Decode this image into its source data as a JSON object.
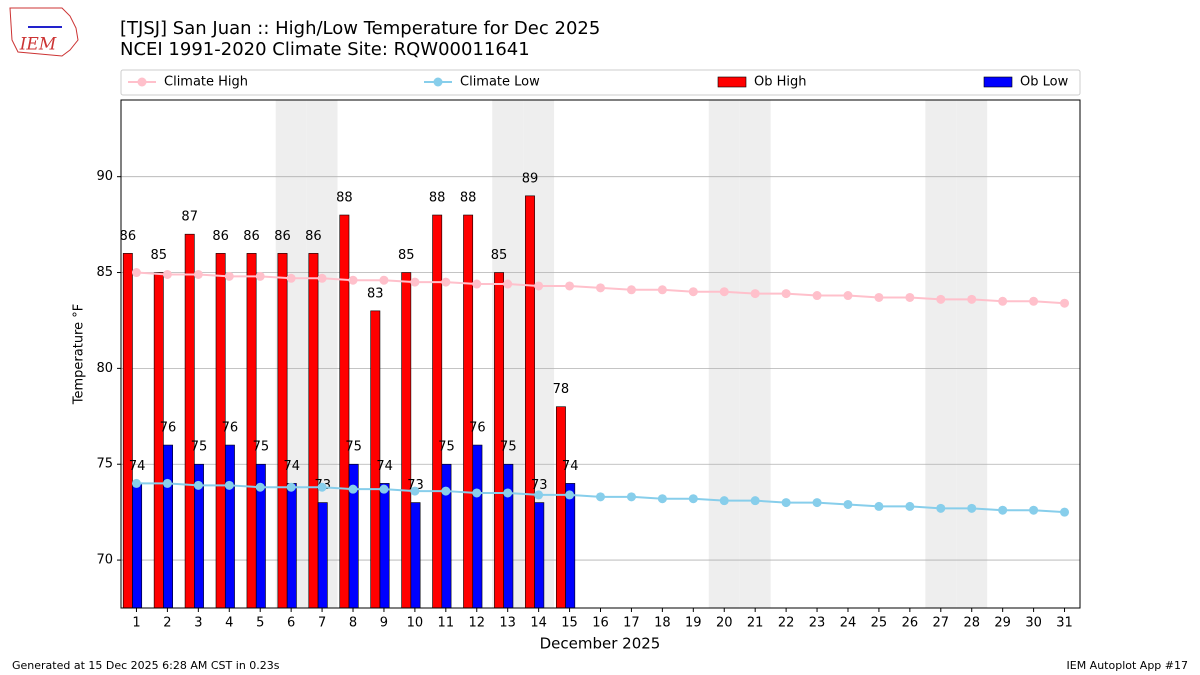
{
  "chart_data": {
    "type": "bar",
    "title": "[TJSJ] San Juan :: High/Low Temperature for Dec 2025",
    "subtitle": "NCEI 1991-2020 Climate Site: RQW00011641",
    "logo_text": "IEM",
    "xlabel": "December 2025",
    "ylabel": "Temperature °F",
    "footer_left": "Generated at 15 Dec 2025 6:28 AM CST in 0.23s",
    "footer_right": "IEM Autoplot App #17",
    "x": [
      1,
      2,
      3,
      4,
      5,
      6,
      7,
      8,
      9,
      10,
      11,
      12,
      13,
      14,
      15,
      16,
      17,
      18,
      19,
      20,
      21,
      22,
      23,
      24,
      25,
      26,
      27,
      28,
      29,
      30,
      31
    ],
    "xlim": [
      0.5,
      31.5
    ],
    "xticks": [
      1,
      2,
      3,
      4,
      5,
      6,
      7,
      8,
      9,
      10,
      11,
      12,
      13,
      14,
      15,
      16,
      17,
      18,
      19,
      20,
      21,
      22,
      23,
      24,
      25,
      26,
      27,
      28,
      29,
      30,
      31
    ],
    "ylim": [
      67.5,
      94
    ],
    "yticks": [
      70,
      75,
      80,
      85,
      90
    ],
    "grid": true,
    "shaded_days": [
      6,
      7,
      13,
      14,
      20,
      21,
      27,
      28
    ],
    "shade_color": "#eeeeee",
    "series": [
      {
        "name": "Climate High",
        "kind": "line",
        "color": "#ffc0cb",
        "values": [
          85.0,
          84.9,
          84.9,
          84.8,
          84.8,
          84.7,
          84.7,
          84.6,
          84.6,
          84.5,
          84.5,
          84.4,
          84.4,
          84.3,
          84.3,
          84.2,
          84.1,
          84.1,
          84.0,
          84.0,
          83.9,
          83.9,
          83.8,
          83.8,
          83.7,
          83.7,
          83.6,
          83.6,
          83.5,
          83.5,
          83.4
        ]
      },
      {
        "name": "Climate Low",
        "kind": "line",
        "color": "#87ceeb",
        "values": [
          74.0,
          74.0,
          73.9,
          73.9,
          73.8,
          73.8,
          73.8,
          73.7,
          73.7,
          73.6,
          73.6,
          73.5,
          73.5,
          73.4,
          73.4,
          73.3,
          73.3,
          73.2,
          73.2,
          73.1,
          73.1,
          73.0,
          73.0,
          72.9,
          72.8,
          72.8,
          72.7,
          72.7,
          72.6,
          72.6,
          72.5
        ]
      },
      {
        "name": "Ob High",
        "kind": "bar",
        "color": "#ff0000",
        "values": [
          86,
          85,
          87,
          86,
          86,
          86,
          86,
          88,
          83,
          85,
          88,
          88,
          85,
          89,
          78,
          null,
          null,
          null,
          null,
          null,
          null,
          null,
          null,
          null,
          null,
          null,
          null,
          null,
          null,
          null,
          null
        ]
      },
      {
        "name": "Ob Low",
        "kind": "bar",
        "color": "#0000ff",
        "values": [
          74,
          76,
          75,
          76,
          75,
          74,
          73,
          75,
          74,
          73,
          75,
          76,
          75,
          73,
          74,
          null,
          null,
          null,
          null,
          null,
          null,
          null,
          null,
          null,
          null,
          null,
          null,
          null,
          null,
          null,
          null
        ]
      }
    ]
  }
}
